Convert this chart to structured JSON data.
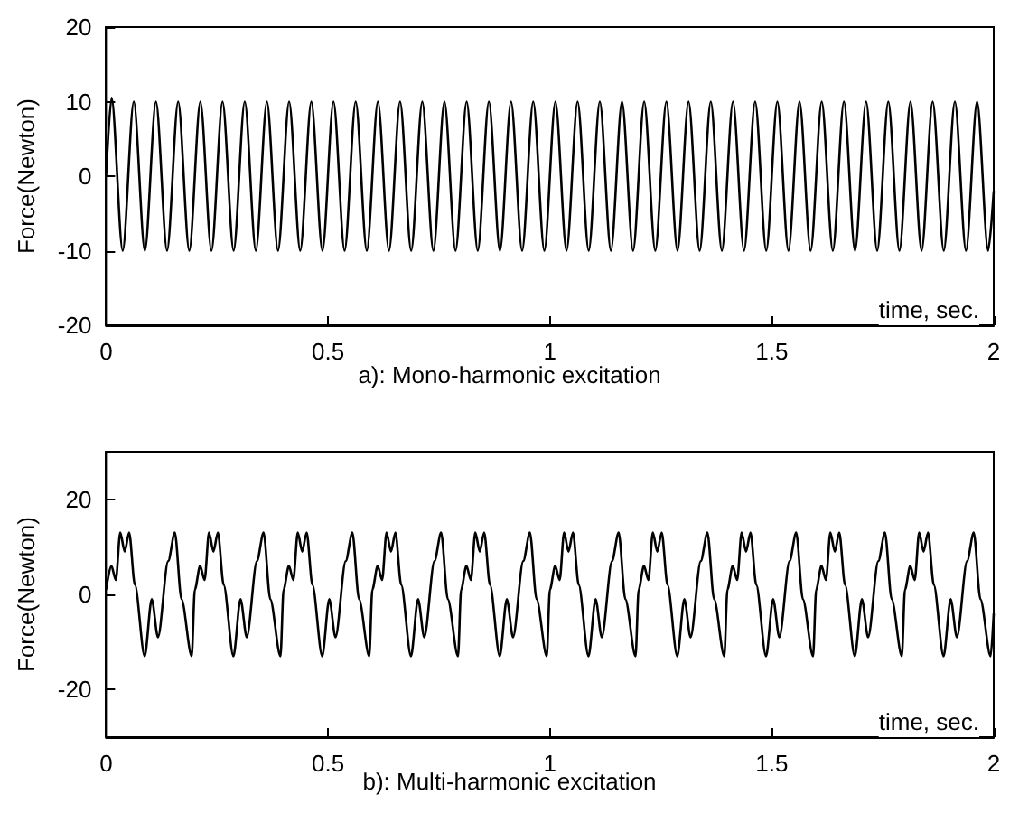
{
  "chart_data": [
    {
      "type": "line",
      "title": "a): Mono-harmonic excitation",
      "xlabel": "time, sec.",
      "ylabel": "Force(Newton)",
      "color": "#000000",
      "xlim": [
        0,
        2
      ],
      "xticks": [
        0,
        0.5,
        1,
        1.5,
        2
      ],
      "ylim": [
        -20,
        20
      ],
      "yticks": [
        -20,
        -10,
        0,
        10,
        20
      ],
      "x": [
        0,
        0.0125,
        0.0375,
        0.0625,
        0.0875,
        0.1125,
        0.1375,
        0.1625,
        0.1875,
        0.2125,
        0.2375,
        0.2625,
        0.2875,
        0.3125,
        0.3375,
        0.3625,
        0.3875,
        0.4125,
        0.4375,
        0.4625,
        0.4875,
        0.5125,
        0.5375,
        0.5625,
        0.5875,
        0.6125,
        0.6375,
        0.6625,
        0.6875,
        0.7125,
        0.7375,
        0.7625,
        0.7875,
        0.8125,
        0.8375,
        0.8625,
        0.8875,
        0.9125,
        0.9375,
        0.9625,
        0.9875,
        1.0125,
        1.0375,
        1.0625,
        1.0875,
        1.1125,
        1.1375,
        1.1625,
        1.1875,
        1.2125,
        1.2375,
        1.2625,
        1.2875,
        1.3125,
        1.3375,
        1.3625,
        1.3875,
        1.4125,
        1.4375,
        1.4625,
        1.4875,
        1.5125,
        1.5375,
        1.5625,
        1.5875,
        1.6125,
        1.6375,
        1.6625,
        1.6875,
        1.7125,
        1.7375,
        1.7625,
        1.7875,
        1.8125,
        1.8375,
        1.8625,
        1.8875,
        1.9125,
        1.9375,
        1.9625,
        1.9875,
        2
      ],
      "values": [
        0,
        10.5,
        -10,
        10,
        -10,
        10,
        -10,
        10,
        -10,
        10,
        -10,
        10,
        -10,
        10,
        -10,
        10,
        -10,
        10,
        -10,
        10,
        -10,
        10,
        -10,
        10,
        -10,
        10,
        -10,
        10,
        -10,
        10,
        -10,
        10,
        -10,
        10,
        -10,
        10,
        -10,
        10,
        -10,
        10,
        -10,
        10,
        -10,
        10,
        -10,
        10,
        -10,
        10,
        -10,
        10,
        -10,
        10,
        -10,
        10,
        -10,
        10,
        -10,
        10,
        -10,
        10,
        -10,
        10,
        -10,
        10,
        -10,
        10,
        -10,
        10,
        -10,
        10,
        -10,
        10,
        -10,
        10,
        -10,
        10,
        -10,
        10,
        -10,
        10,
        -10,
        -2
      ]
    },
    {
      "type": "line",
      "title": "b): Multi-harmonic excitation",
      "xlabel": "time, sec.",
      "ylabel": "Force(Newton)",
      "color": "#000000",
      "xlim": [
        0,
        2
      ],
      "xticks": [
        0,
        0.5,
        1,
        1.5,
        2
      ],
      "ylim": [
        -30,
        30
      ],
      "yticks": [
        -20,
        0,
        20
      ],
      "x": [
        0,
        0.012,
        0.022,
        0.032,
        0.042,
        0.052,
        0.065,
        0.087,
        0.103,
        0.117,
        0.14,
        0.155,
        0.17,
        0.193,
        0.2,
        0.212,
        0.222,
        0.232,
        0.242,
        0.252,
        0.265,
        0.287,
        0.303,
        0.317,
        0.34,
        0.355,
        0.37,
        0.393,
        0.4,
        0.412,
        0.422,
        0.432,
        0.442,
        0.452,
        0.465,
        0.487,
        0.503,
        0.517,
        0.54,
        0.555,
        0.57,
        0.593,
        0.6,
        0.612,
        0.622,
        0.632,
        0.642,
        0.652,
        0.665,
        0.687,
        0.703,
        0.717,
        0.74,
        0.755,
        0.77,
        0.793,
        0.8,
        0.812,
        0.822,
        0.832,
        0.842,
        0.852,
        0.865,
        0.887,
        0.903,
        0.917,
        0.94,
        0.955,
        0.97,
        0.993,
        1,
        1.012,
        1.022,
        1.032,
        1.042,
        1.052,
        1.065,
        1.087,
        1.103,
        1.117,
        1.14,
        1.155,
        1.17,
        1.193,
        1.2,
        1.212,
        1.222,
        1.232,
        1.242,
        1.252,
        1.265,
        1.287,
        1.303,
        1.317,
        1.34,
        1.355,
        1.37,
        1.393,
        1.4,
        1.412,
        1.422,
        1.432,
        1.442,
        1.452,
        1.465,
        1.487,
        1.503,
        1.517,
        1.54,
        1.555,
        1.57,
        1.593,
        1.6,
        1.612,
        1.622,
        1.632,
        1.642,
        1.652,
        1.665,
        1.687,
        1.703,
        1.717,
        1.74,
        1.755,
        1.77,
        1.793,
        1.8,
        1.812,
        1.822,
        1.832,
        1.842,
        1.852,
        1.865,
        1.887,
        1.903,
        1.917,
        1.94,
        1.955,
        1.97,
        1.993,
        2
      ],
      "values": [
        1,
        6,
        3,
        13,
        9,
        13,
        2,
        -13,
        -1,
        -9,
        7,
        13,
        -1,
        -13,
        1,
        6,
        3,
        13,
        9,
        13,
        2,
        -13,
        -1,
        -9,
        7,
        13,
        -1,
        -13,
        1,
        6,
        3,
        13,
        9,
        13,
        2,
        -13,
        -1,
        -9,
        7,
        13,
        -1,
        -13,
        1,
        6,
        3,
        13,
        9,
        13,
        2,
        -13,
        -1,
        -9,
        7,
        13,
        -1,
        -13,
        1,
        6,
        3,
        13,
        9,
        13,
        2,
        -13,
        -1,
        -9,
        7,
        13,
        -1,
        -13,
        1,
        6,
        3,
        13,
        9,
        13,
        2,
        -13,
        -1,
        -9,
        7,
        13,
        -1,
        -13,
        1,
        6,
        3,
        13,
        9,
        13,
        2,
        -13,
        -1,
        -9,
        7,
        13,
        -1,
        -13,
        1,
        6,
        3,
        13,
        9,
        13,
        2,
        -13,
        -1,
        -9,
        7,
        13,
        -1,
        -13,
        1,
        6,
        3,
        13,
        9,
        13,
        2,
        -13,
        -1,
        -9,
        7,
        13,
        -1,
        -13,
        1,
        6,
        3,
        13,
        9,
        13,
        2,
        -13,
        -1,
        -9,
        7,
        13,
        -1,
        -13,
        -4
      ]
    }
  ]
}
